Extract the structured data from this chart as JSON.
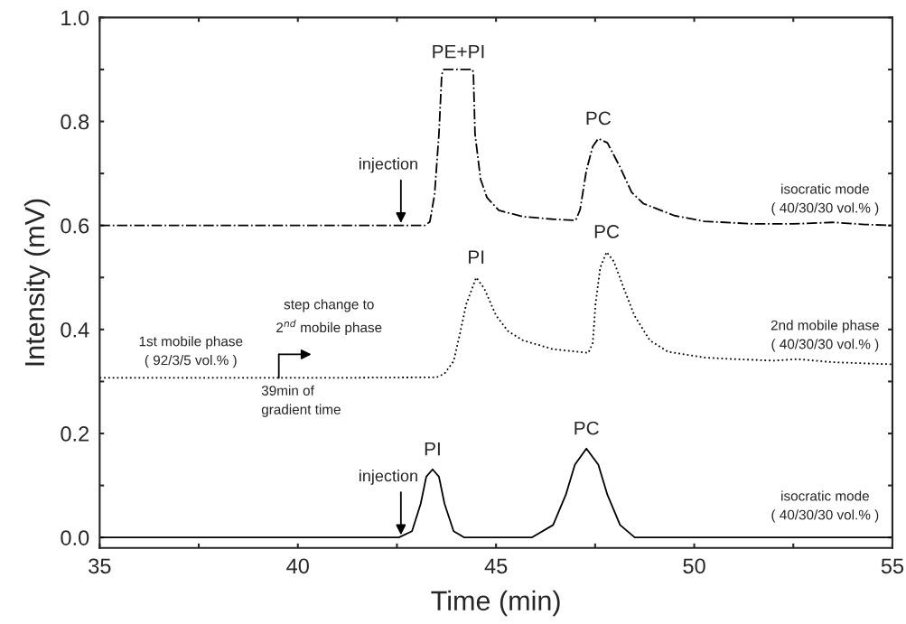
{
  "chart_data": {
    "type": "line",
    "xlabel": "Time (min)",
    "ylabel": "Intensity (mV)",
    "xlim": [
      35,
      55
    ],
    "ylim": [
      -0.02,
      1.0
    ],
    "xticks": [
      35,
      {
        "value": 37.5,
        "label": null
      },
      40,
      {
        "value": 42.5,
        "label": null
      },
      45,
      {
        "value": 47.5,
        "label": null
      },
      50,
      {
        "value": 52.5,
        "label": null
      },
      55
    ],
    "yticks": [
      {
        "value": 0.0,
        "label": "0.0"
      },
      {
        "value": 0.1,
        "label": null
      },
      0.2,
      {
        "value": 0.3,
        "label": null
      },
      0.4,
      {
        "value": 0.5,
        "label": null
      },
      0.6,
      {
        "value": 0.7,
        "label": null
      },
      0.8,
      {
        "value": 0.9,
        "label": null
      },
      {
        "value": 1.0,
        "label": "1.0"
      }
    ],
    "grid": false,
    "legend": false,
    "marker": "none",
    "series": [
      {
        "color": "#000000",
        "line_style": "dashdot",
        "x": [
          35,
          38,
          41,
          43.2,
          43.33,
          43.45,
          43.56,
          43.63,
          43.68,
          44.41,
          44.43,
          44.47,
          44.61,
          44.77,
          45.07,
          45.68,
          46.44,
          47.01,
          47.12,
          47.28,
          47.44,
          47.58,
          47.81,
          48.13,
          48.42,
          48.72,
          49.5,
          50.25,
          51.5,
          52.5,
          53.5,
          54.3,
          55
        ],
        "values": [
          0.6,
          0.6,
          0.6,
          0.6,
          0.607,
          0.66,
          0.776,
          0.89,
          0.9,
          0.9,
          0.89,
          0.776,
          0.689,
          0.654,
          0.629,
          0.617,
          0.612,
          0.61,
          0.63,
          0.706,
          0.752,
          0.767,
          0.759,
          0.712,
          0.664,
          0.642,
          0.619,
          0.608,
          0.603,
          0.603,
          0.606,
          0.602,
          0.6
        ]
      },
      {
        "color": "#000000",
        "line_style": "dotted",
        "x": [
          35,
          38,
          41,
          43.5,
          43.7,
          43.93,
          44.09,
          44.25,
          44.5,
          44.7,
          45.0,
          45.3,
          45.68,
          46.44,
          47.33,
          47.44,
          47.51,
          47.63,
          47.79,
          47.97,
          48.2,
          48.49,
          48.88,
          49.34,
          50.25,
          51,
          52,
          52.6,
          53.5,
          55
        ],
        "values": [
          0.307,
          0.307,
          0.307,
          0.308,
          0.315,
          0.339,
          0.392,
          0.449,
          0.5,
          0.479,
          0.427,
          0.397,
          0.379,
          0.362,
          0.355,
          0.374,
          0.449,
          0.519,
          0.549,
          0.531,
          0.484,
          0.427,
          0.379,
          0.357,
          0.346,
          0.343,
          0.34,
          0.343,
          0.337,
          0.333
        ]
      },
      {
        "color": "#000000",
        "line_style": "solid",
        "x": [
          35,
          40,
          42.55,
          42.88,
          43.1,
          43.24,
          43.4,
          43.56,
          43.7,
          43.93,
          44.2,
          45.0,
          45.9,
          46.44,
          46.76,
          46.99,
          47.28,
          47.58,
          47.81,
          48.13,
          48.5,
          50,
          52,
          55
        ],
        "values": [
          0,
          0,
          0,
          0.012,
          0.065,
          0.117,
          0.131,
          0.117,
          0.065,
          0.012,
          0,
          0,
          0,
          0.024,
          0.082,
          0.14,
          0.171,
          0.14,
          0.082,
          0.024,
          0,
          0,
          0,
          0
        ]
      }
    ],
    "annotations": [
      {
        "text": "PE+PI",
        "x": 44.05,
        "y": 0.9
      },
      {
        "text": "PC",
        "x": 47.58,
        "y": 0.767
      },
      {
        "text": "PI",
        "x": 44.5,
        "y": 0.5
      },
      {
        "text": "PC",
        "x": 47.79,
        "y": 0.549
      },
      {
        "text": "PI",
        "x": 43.4,
        "y": 0.131
      },
      {
        "text": "PC",
        "x": 47.28,
        "y": 0.171
      },
      {
        "text": "injection",
        "x": 42.6,
        "y": 0.6
      },
      {
        "text": "injection",
        "x": 42.6,
        "y": 0.0
      },
      {
        "text": "isocratic mode\n( 40/30/30 vol.% )",
        "x": 53.3,
        "y": 0.6
      },
      {
        "text": "2nd mobile phase\n( 40/30/30 vol.% )",
        "x": 53.3,
        "y": 0.338
      },
      {
        "text": "isocratic mode\n( 40/30/30 vol.% )",
        "x": 53.3,
        "y": 0.0
      },
      {
        "text": "1st mobile phase\n( 92/3/5 vol.% )",
        "x": 37.3,
        "y": 0.307
      },
      "step change to\n2$^{nd}$ mobile phase",
      {
        "text": "39min of\ngradient time",
        "x": 39.52,
        "y": 0.307
      }
    ]
  }
}
